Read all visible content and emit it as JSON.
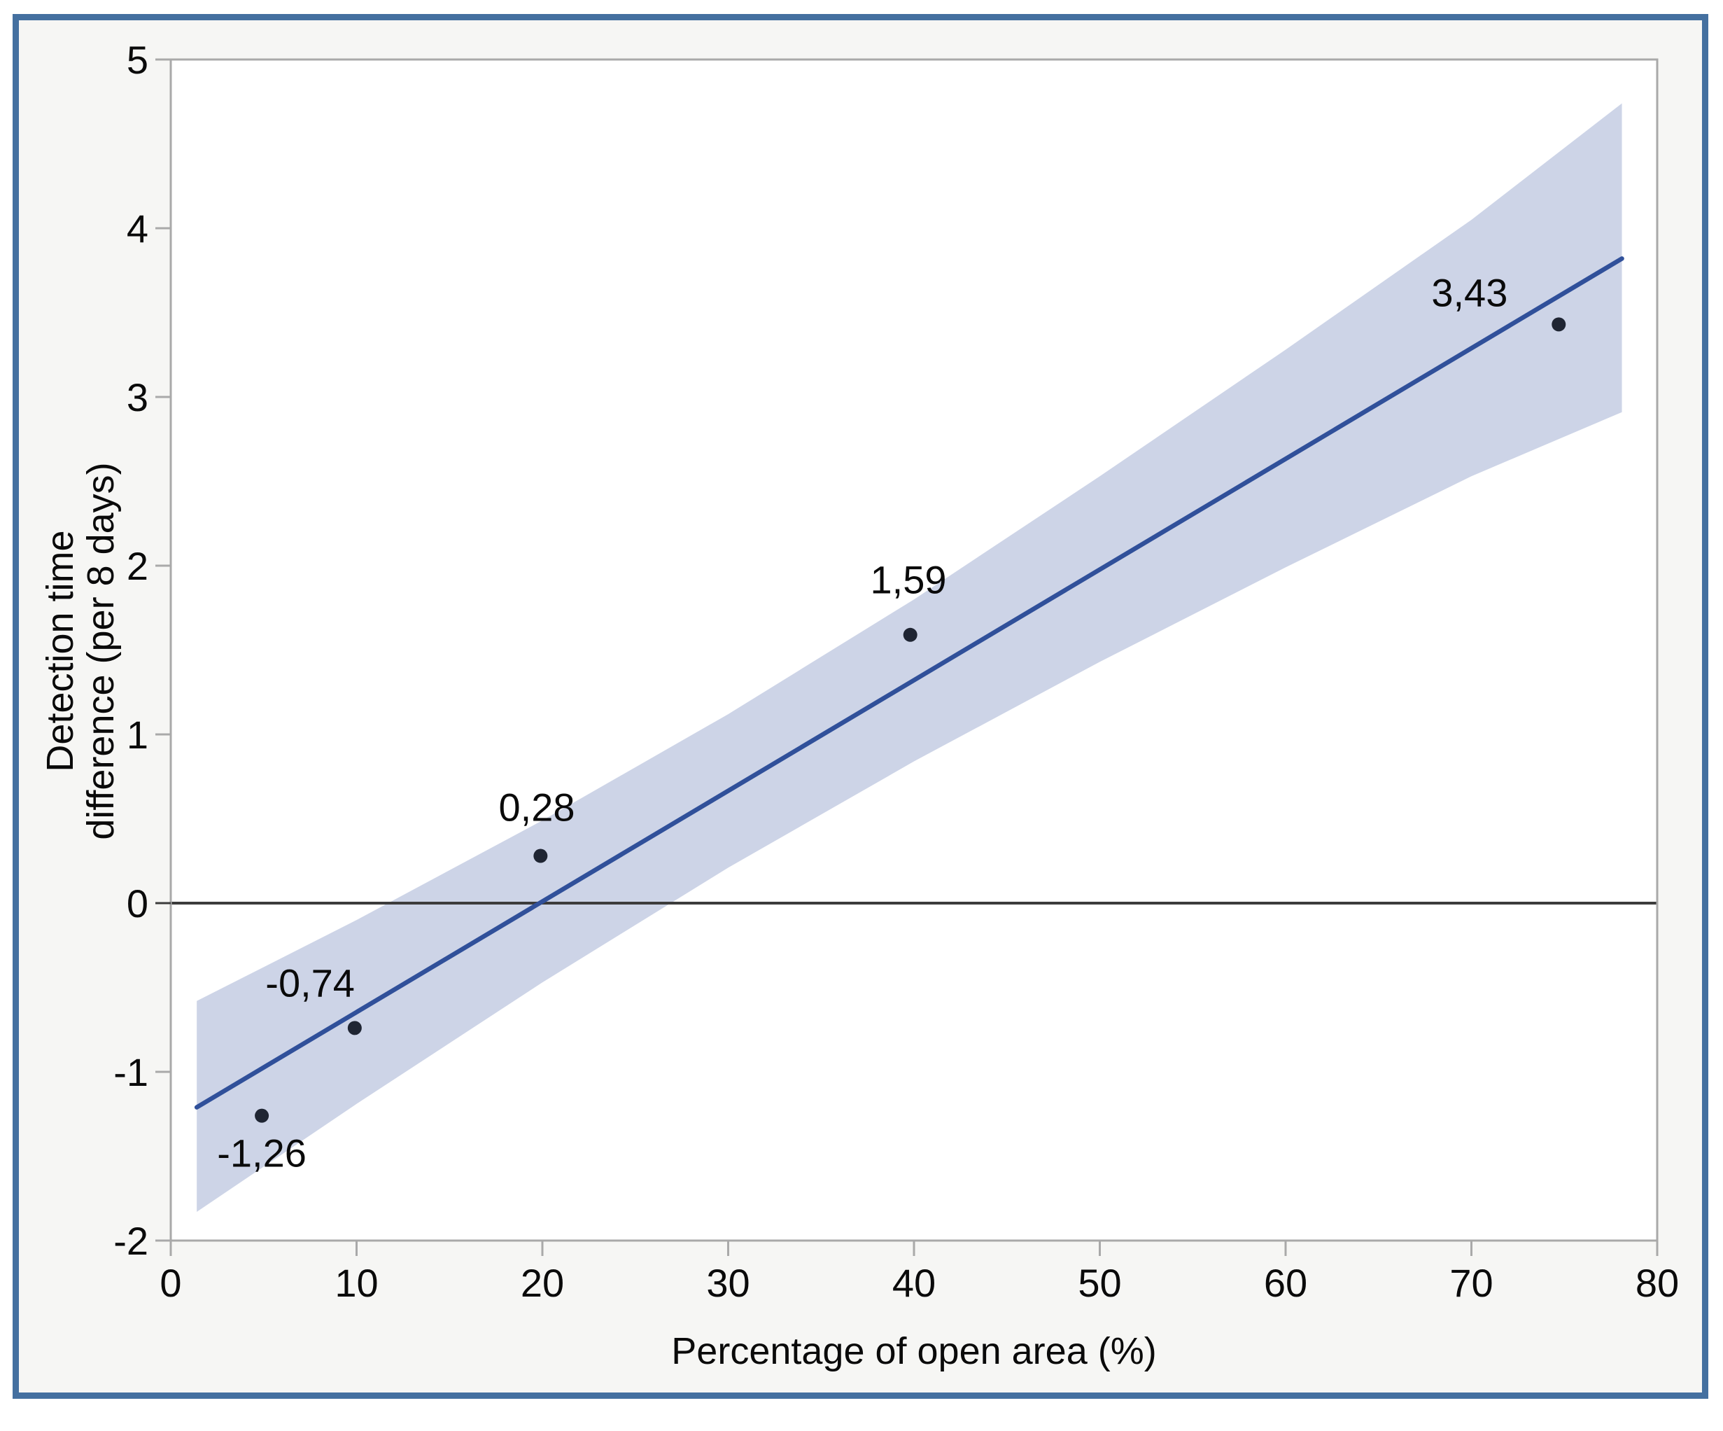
{
  "chart_data": {
    "type": "scatter",
    "title": "",
    "xlabel": "Percentage of open area (%)",
    "ylabel_lines": [
      "Detection time",
      "difference (per 8 days)"
    ],
    "xlim": [
      0,
      80
    ],
    "ylim": [
      -2,
      5
    ],
    "x_ticks": [
      0,
      10,
      20,
      30,
      40,
      50,
      60,
      70,
      80
    ],
    "y_ticks": [
      -2,
      -1,
      0,
      1,
      2,
      3,
      4,
      5
    ],
    "grid": false,
    "legend": null,
    "reference_line_y": 0,
    "points": [
      {
        "x": 4.9,
        "y": -1.26,
        "label": "-1,26",
        "label_x": 4.9,
        "label_y": -1.48
      },
      {
        "x": 9.9,
        "y": -0.74,
        "label": "-0,74",
        "label_x": 7.5,
        "label_y": -0.47
      },
      {
        "x": 19.9,
        "y": 0.28,
        "label": "0,28",
        "label_x": 19.7,
        "label_y": 0.57
      },
      {
        "x": 39.8,
        "y": 1.59,
        "label": "1,59",
        "label_x": 39.7,
        "label_y": 1.92
      },
      {
        "x": 74.7,
        "y": 3.43,
        "label": "3,43",
        "label_x": 69.9,
        "label_y": 3.62
      }
    ],
    "fit_line": {
      "x1": 1.4,
      "y1": -1.21,
      "x2": 78.1,
      "y2": 3.82
    },
    "confidence_band": {
      "x": [
        1.4,
        10,
        20,
        30,
        40,
        50,
        60,
        70,
        78.1
      ],
      "upper": [
        -0.58,
        -0.1,
        0.49,
        1.12,
        1.8,
        2.53,
        3.28,
        4.05,
        4.74
      ],
      "lower": [
        -1.83,
        -1.19,
        -0.47,
        0.21,
        0.84,
        1.43,
        1.99,
        2.53,
        2.91
      ]
    }
  },
  "colors": {
    "figure_border": "#4470a0",
    "outer_background": "#f6f6f4",
    "plot_background": "#ffffff",
    "plot_frame": "#a9a9a9",
    "band_fill": "#cdd4e7",
    "fit_line": "#30509a",
    "point_fill": "#1f2533",
    "zero_line": "#3c3c3c",
    "tick_color": "#a9a9a9",
    "text_color": "#0a0a0a"
  }
}
